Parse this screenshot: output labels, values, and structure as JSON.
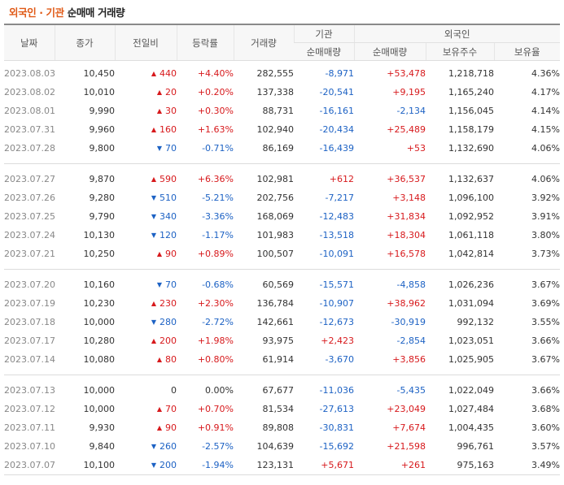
{
  "title": {
    "part1": "외국인 · 기관",
    "part2": "순매매 거래량"
  },
  "headers": {
    "date": "날짜",
    "close": "종가",
    "change": "전일비",
    "rate": "등락률",
    "volume": "거래량",
    "inst_group": "기관",
    "foreign_group": "외국인",
    "inst_net": "순매매량",
    "foreign_net": "순매매량",
    "holdings": "보유주수",
    "ratio": "보유율"
  },
  "colors": {
    "up": "#d7191c",
    "down": "#1d62c4",
    "title_accent": "#e05a17"
  },
  "rows": [
    {
      "date": "2023.08.03",
      "close": "10,450",
      "dir": "up",
      "change": "440",
      "rate": "+4.40%",
      "volume": "282,555",
      "inst": "-8,971",
      "foreign": "+53,478",
      "holdings": "1,218,718",
      "ratio": "4.36%"
    },
    {
      "date": "2023.08.02",
      "close": "10,010",
      "dir": "up",
      "change": "20",
      "rate": "+0.20%",
      "volume": "137,338",
      "inst": "-20,541",
      "foreign": "+9,195",
      "holdings": "1,165,240",
      "ratio": "4.17%"
    },
    {
      "date": "2023.08.01",
      "close": "9,990",
      "dir": "up",
      "change": "30",
      "rate": "+0.30%",
      "volume": "88,731",
      "inst": "-16,161",
      "foreign": "-2,134",
      "holdings": "1,156,045",
      "ratio": "4.14%"
    },
    {
      "date": "2023.07.31",
      "close": "9,960",
      "dir": "up",
      "change": "160",
      "rate": "+1.63%",
      "volume": "102,940",
      "inst": "-20,434",
      "foreign": "+25,489",
      "holdings": "1,158,179",
      "ratio": "4.15%"
    },
    {
      "date": "2023.07.28",
      "close": "9,800",
      "dir": "down",
      "change": "70",
      "rate": "-0.71%",
      "volume": "86,169",
      "inst": "-16,439",
      "foreign": "+53",
      "holdings": "1,132,690",
      "ratio": "4.06%"
    },
    {
      "date": "2023.07.27",
      "close": "9,870",
      "dir": "up",
      "change": "590",
      "rate": "+6.36%",
      "volume": "102,981",
      "inst": "+612",
      "foreign": "+36,537",
      "holdings": "1,132,637",
      "ratio": "4.06%"
    },
    {
      "date": "2023.07.26",
      "close": "9,280",
      "dir": "down",
      "change": "510",
      "rate": "-5.21%",
      "volume": "202,756",
      "inst": "-7,217",
      "foreign": "+3,148",
      "holdings": "1,096,100",
      "ratio": "3.92%"
    },
    {
      "date": "2023.07.25",
      "close": "9,790",
      "dir": "down",
      "change": "340",
      "rate": "-3.36%",
      "volume": "168,069",
      "inst": "-12,483",
      "foreign": "+31,834",
      "holdings": "1,092,952",
      "ratio": "3.91%"
    },
    {
      "date": "2023.07.24",
      "close": "10,130",
      "dir": "down",
      "change": "120",
      "rate": "-1.17%",
      "volume": "101,983",
      "inst": "-13,518",
      "foreign": "+18,304",
      "holdings": "1,061,118",
      "ratio": "3.80%"
    },
    {
      "date": "2023.07.21",
      "close": "10,250",
      "dir": "up",
      "change": "90",
      "rate": "+0.89%",
      "volume": "100,507",
      "inst": "-10,091",
      "foreign": "+16,578",
      "holdings": "1,042,814",
      "ratio": "3.73%"
    },
    {
      "date": "2023.07.20",
      "close": "10,160",
      "dir": "down",
      "change": "70",
      "rate": "-0.68%",
      "volume": "60,569",
      "inst": "-15,571",
      "foreign": "-4,858",
      "holdings": "1,026,236",
      "ratio": "3.67%"
    },
    {
      "date": "2023.07.19",
      "close": "10,230",
      "dir": "up",
      "change": "230",
      "rate": "+2.30%",
      "volume": "136,784",
      "inst": "-10,907",
      "foreign": "+38,962",
      "holdings": "1,031,094",
      "ratio": "3.69%"
    },
    {
      "date": "2023.07.18",
      "close": "10,000",
      "dir": "down",
      "change": "280",
      "rate": "-2.72%",
      "volume": "142,661",
      "inst": "-12,673",
      "foreign": "-30,919",
      "holdings": "992,132",
      "ratio": "3.55%"
    },
    {
      "date": "2023.07.17",
      "close": "10,280",
      "dir": "up",
      "change": "200",
      "rate": "+1.98%",
      "volume": "93,975",
      "inst": "+2,423",
      "foreign": "-2,854",
      "holdings": "1,023,051",
      "ratio": "3.66%"
    },
    {
      "date": "2023.07.14",
      "close": "10,080",
      "dir": "up",
      "change": "80",
      "rate": "+0.80%",
      "volume": "61,914",
      "inst": "-3,670",
      "foreign": "+3,856",
      "holdings": "1,025,905",
      "ratio": "3.67%"
    },
    {
      "date": "2023.07.13",
      "close": "10,000",
      "dir": "flat",
      "change": "0",
      "rate": "0.00%",
      "volume": "67,677",
      "inst": "-11,036",
      "foreign": "-5,435",
      "holdings": "1,022,049",
      "ratio": "3.66%"
    },
    {
      "date": "2023.07.12",
      "close": "10,000",
      "dir": "up",
      "change": "70",
      "rate": "+0.70%",
      "volume": "81,534",
      "inst": "-27,613",
      "foreign": "+23,049",
      "holdings": "1,027,484",
      "ratio": "3.68%"
    },
    {
      "date": "2023.07.11",
      "close": "9,930",
      "dir": "up",
      "change": "90",
      "rate": "+0.91%",
      "volume": "89,808",
      "inst": "-30,831",
      "foreign": "+7,674",
      "holdings": "1,004,435",
      "ratio": "3.60%"
    },
    {
      "date": "2023.07.10",
      "close": "9,840",
      "dir": "down",
      "change": "260",
      "rate": "-2.57%",
      "volume": "104,639",
      "inst": "-15,692",
      "foreign": "+21,598",
      "holdings": "996,761",
      "ratio": "3.57%"
    },
    {
      "date": "2023.07.07",
      "close": "10,100",
      "dir": "down",
      "change": "200",
      "rate": "-1.94%",
      "volume": "123,131",
      "inst": "+5,671",
      "foreign": "+261",
      "holdings": "975,163",
      "ratio": "3.49%"
    }
  ]
}
